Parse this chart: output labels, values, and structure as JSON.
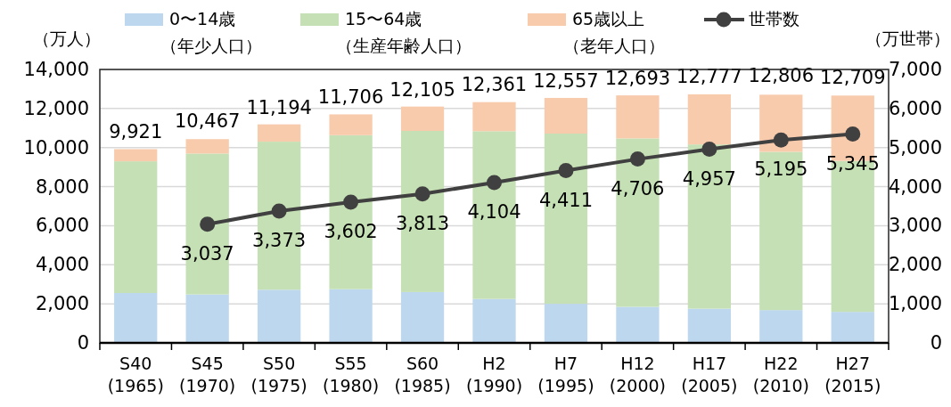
{
  "chart_data": {
    "type": "bar",
    "stacked": true,
    "categories": [
      "S40\n(1965)",
      "S45\n(1970)",
      "S50\n(1975)",
      "S55\n(1980)",
      "S60\n(1985)",
      "H2\n(1990)",
      "H7\n(1995)",
      "H12\n(2000)",
      "H17\n(2005)",
      "H22\n(2010)",
      "H27\n(2015)"
    ],
    "series": [
      {
        "name": "0〜14歳（年少人口）",
        "color": "#bdd7ee",
        "values": [
          2553,
          2482,
          2722,
          2751,
          2603,
          2249,
          2001,
          1847,
          1752,
          1680,
          1589
        ]
      },
      {
        "name": "15〜64歳（生産年齢人口）",
        "color": "#c5e0b4",
        "values": [
          6744,
          7212,
          7581,
          7884,
          8251,
          8590,
          8716,
          8622,
          8409,
          8103,
          7728
        ]
      },
      {
        "name": "65歳以上（老年人口）",
        "color": "#f8cbad",
        "values": [
          624,
          739,
          887,
          1065,
          1247,
          1489,
          1826,
          2204,
          2567,
          2925,
          3347
        ]
      },
      {
        "name": "世帯数",
        "type": "line",
        "axis": "y2",
        "color": "#404040",
        "marker": "circle",
        "values": [
          null,
          3037,
          3373,
          3602,
          3813,
          4104,
          4411,
          4706,
          4957,
          5195,
          5345
        ],
        "value_labels": [
          null,
          "3,037",
          "3,373",
          "3,602",
          "3,813",
          "4,104",
          "4,411",
          "4,706",
          "4,957",
          "5,195",
          "5,345"
        ]
      }
    ],
    "annotations": [
      {
        "text": "9,921",
        "x": "S40\n(1965)",
        "y": 9921
      },
      {
        "text": "10,467",
        "x": "S45\n(1970)",
        "y": 10467
      },
      {
        "text": "11,194",
        "x": "S50\n(1975)",
        "y": 11194
      },
      {
        "text": "11,706",
        "x": "S55\n(1980)",
        "y": 11706
      },
      {
        "text": "12,105",
        "x": "S60\n(1985)",
        "y": 12105
      },
      {
        "text": "12,361",
        "x": "H2\n(1990)",
        "y": 12361
      },
      {
        "text": "12,557",
        "x": "H7\n(1995)",
        "y": 12557
      },
      {
        "text": "12,693",
        "x": "H12\n(2000)",
        "y": 12693
      },
      {
        "text": "12,777",
        "x": "H17\n(2005)",
        "y": 12777
      },
      {
        "text": "12,806",
        "x": "H22\n(2010)",
        "y": 12806
      },
      {
        "text": "12,709",
        "x": "H27\n(2015)",
        "y": 12709
      }
    ],
    "ylabel": "（万人）",
    "y2label": "（万世帯）",
    "ylim": [
      0,
      14000
    ],
    "yticks": [
      0,
      {
        "value": 2000,
        "label": "2,000"
      },
      {
        "value": 4000,
        "label": "4,000"
      },
      {
        "value": 6000,
        "label": "6,000"
      },
      {
        "value": 8000,
        "label": "8,000"
      },
      {
        "value": 10000,
        "label": "10,000"
      },
      {
        "value": 12000,
        "label": "12,000"
      },
      {
        "value": 14000,
        "label": "14,000"
      }
    ],
    "y2lim": [
      0,
      7000
    ],
    "y2ticks": [
      0,
      {
        "value": 1000,
        "label": "1,000"
      },
      {
        "value": 2000,
        "label": "2,000"
      },
      {
        "value": 3000,
        "label": "3,000"
      },
      {
        "value": 4000,
        "label": "4,000"
      },
      {
        "value": 5000,
        "label": "5,000"
      },
      {
        "value": 6000,
        "label": "6,000"
      },
      {
        "value": 7000,
        "label": "7,000"
      }
    ],
    "grid": "y",
    "legend": "top"
  }
}
